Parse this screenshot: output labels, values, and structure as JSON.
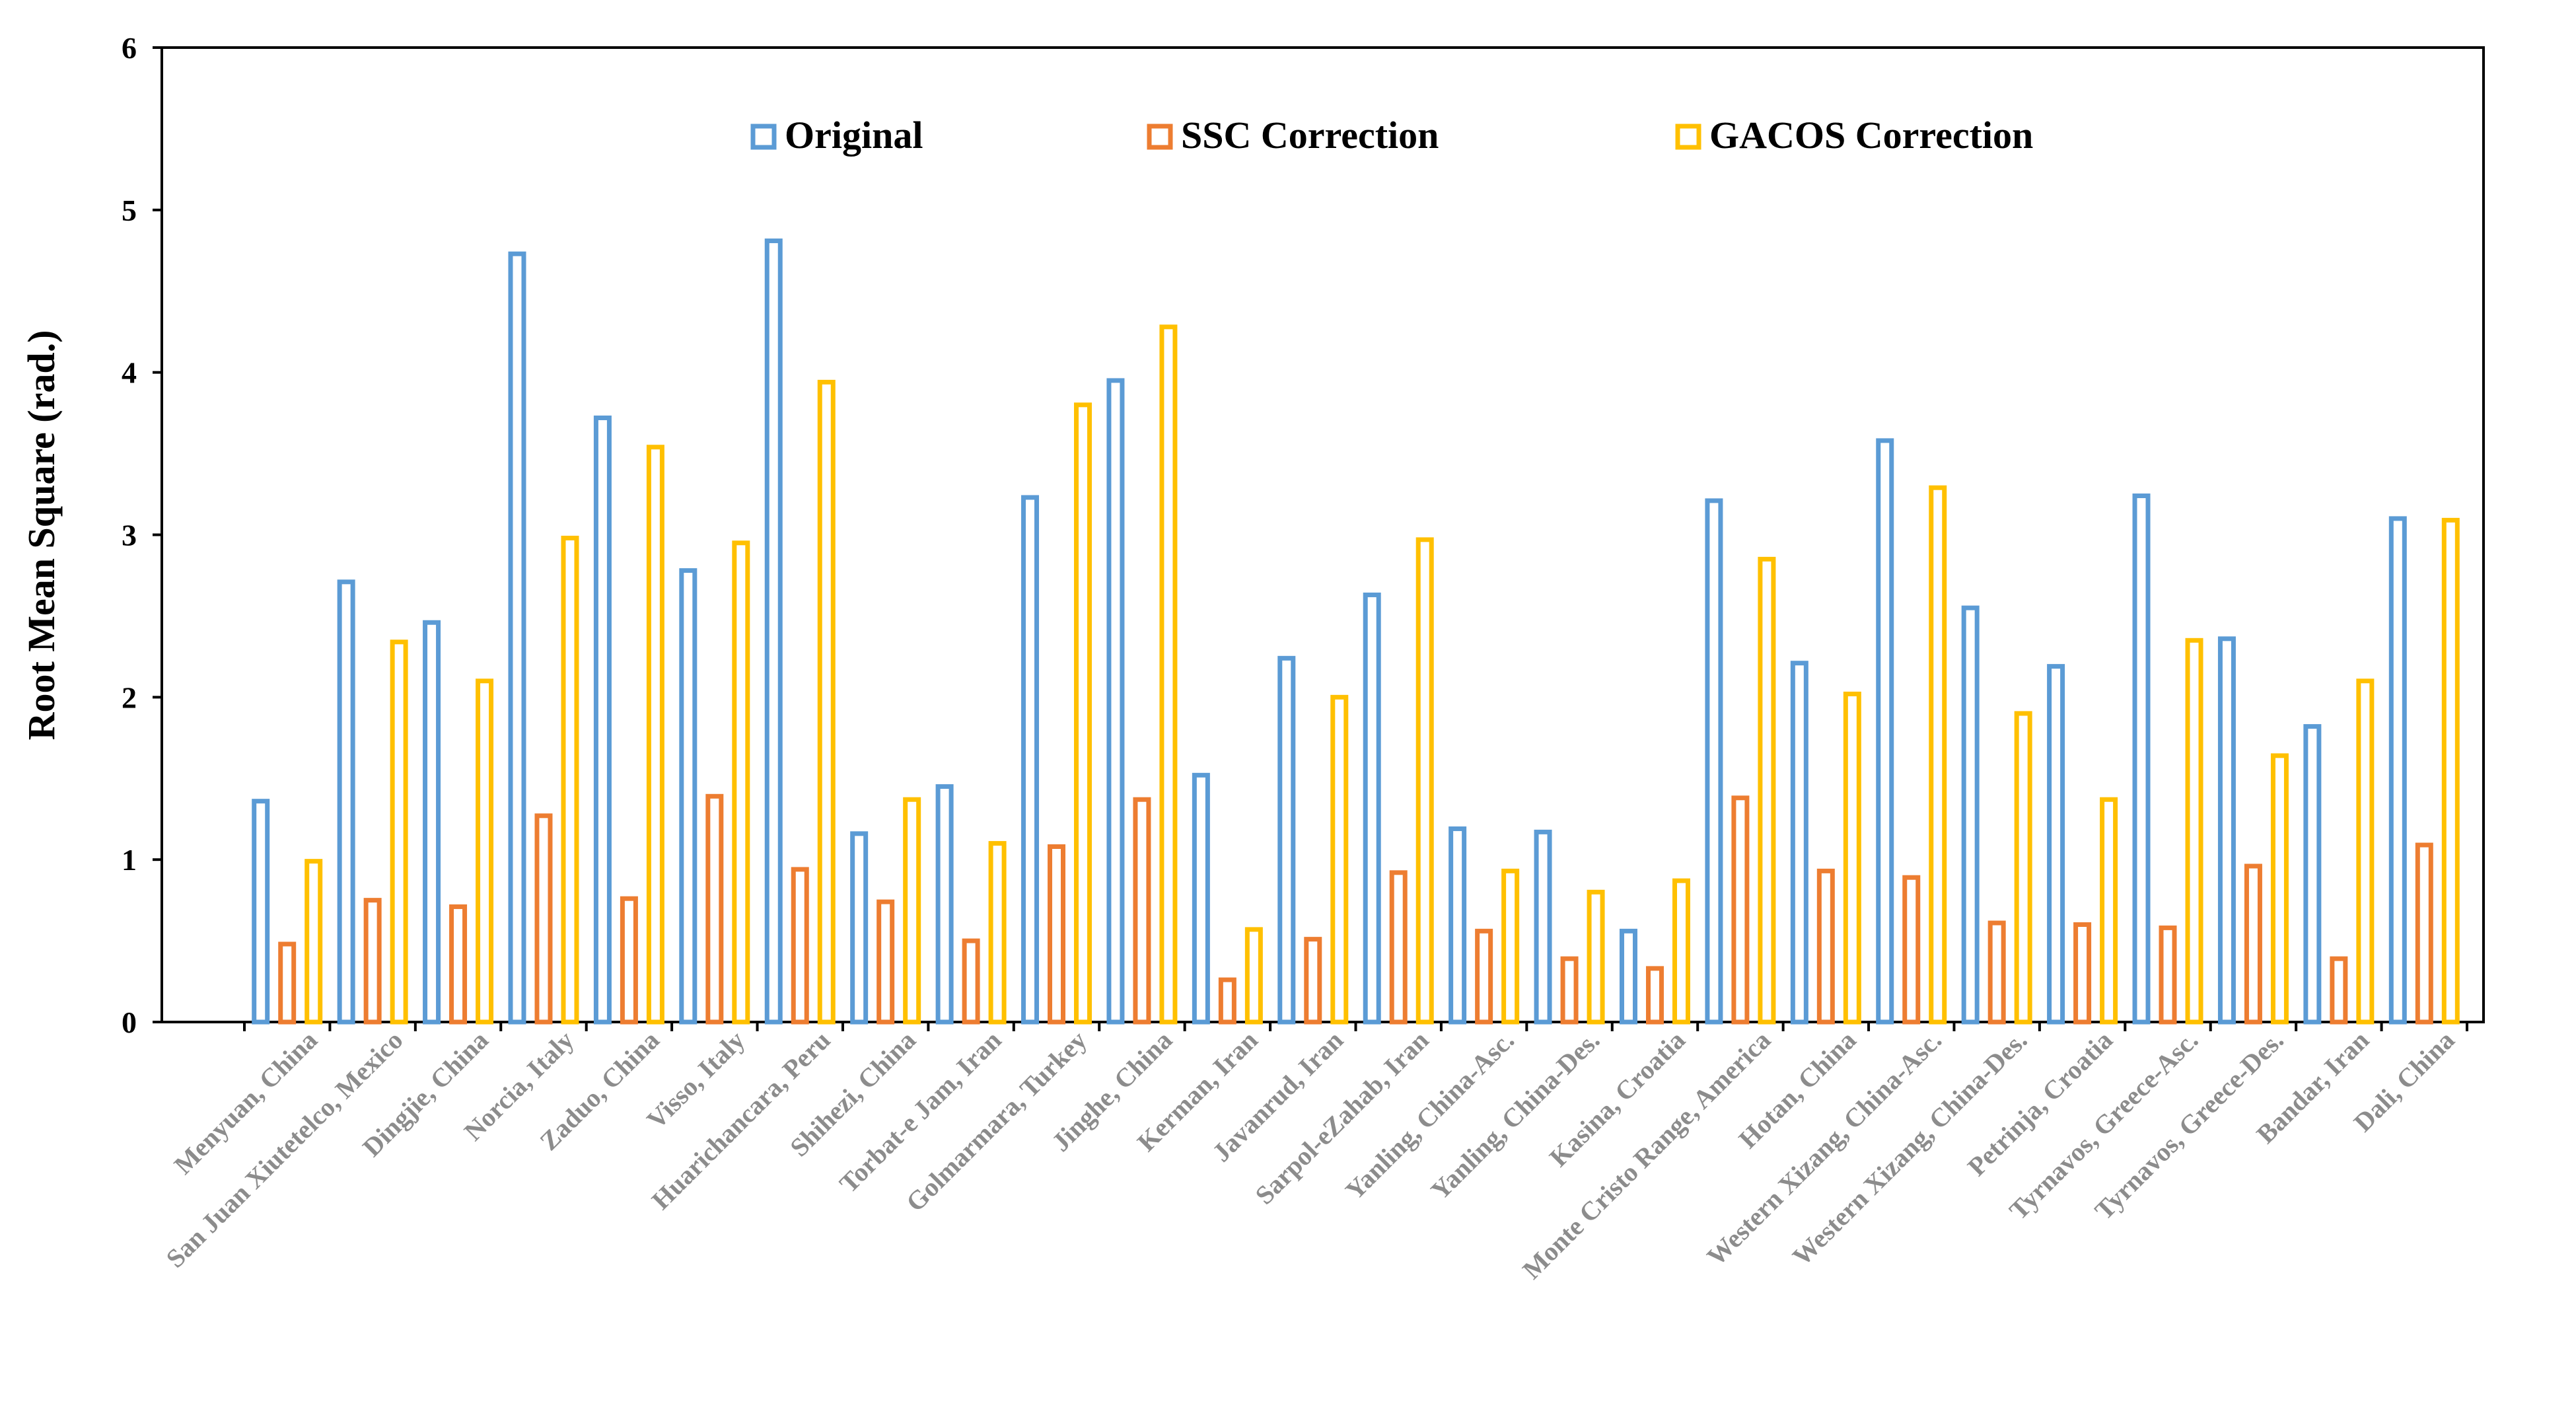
{
  "chart_data": {
    "type": "bar",
    "title": "",
    "xlabel": "",
    "ylabel": "Root Mean Square (rad.)",
    "ylim": [
      0,
      6
    ],
    "yticks": [
      "0",
      "1",
      "2",
      "3",
      "4",
      "5",
      "6"
    ],
    "grid": false,
    "legend_position": "top",
    "categories": [
      "Menyuan, China",
      "San Juan Xiutetelco, Mexico",
      "Dingjie, China",
      "Norcia, Italy",
      "Zaduo, China",
      "Visso, Italy",
      "Huarichancara, Peru",
      "Shihezi, China",
      "Torbat-e Jam, Iran",
      "Golmarmara, Turkey",
      "Jinghe, China",
      "Kerman, Iran",
      "Javanrud, Iran",
      "Sarpol-eZahab, Iran",
      "Yanling, China-Asc.",
      "Yanling, China-Des.",
      "Kasina, Croatia",
      "Monte Cristo Range, America",
      "Hotan, China",
      "Western Xizang, China-Asc.",
      "Western Xizang, China-Des.",
      "Petrinja, Croatia",
      "Tyrnavos, Greece-Asc.",
      "Tyrnavos, Greece-Des.",
      "Bandar, Iran",
      "Dali, China"
    ],
    "series": [
      {
        "name": "Original",
        "color": "#5b9bd5",
        "values": [
          1.36,
          2.71,
          2.46,
          4.73,
          3.72,
          2.78,
          4.81,
          1.16,
          1.45,
          3.23,
          3.95,
          1.52,
          2.24,
          2.63,
          1.19,
          1.17,
          0.56,
          3.21,
          2.21,
          3.58,
          2.55,
          2.19,
          3.24,
          2.36,
          1.82,
          3.1
        ]
      },
      {
        "name": "SSC Correction",
        "color": "#ed7d31",
        "values": [
          0.48,
          0.75,
          0.71,
          1.27,
          0.76,
          1.39,
          0.94,
          0.74,
          0.5,
          1.08,
          1.37,
          0.26,
          0.51,
          0.92,
          0.56,
          0.39,
          0.33,
          1.38,
          0.93,
          0.89,
          0.61,
          0.6,
          0.58,
          0.96,
          0.39,
          1.09
        ]
      },
      {
        "name": "GACOS Correction",
        "color": "#ffc000",
        "values": [
          0.99,
          2.34,
          2.1,
          2.98,
          3.54,
          2.95,
          3.94,
          1.37,
          1.1,
          3.8,
          4.28,
          0.57,
          2.0,
          2.97,
          0.93,
          0.8,
          0.87,
          2.85,
          2.02,
          3.29,
          1.9,
          1.37,
          2.35,
          1.64,
          2.1,
          3.09
        ]
      }
    ]
  }
}
